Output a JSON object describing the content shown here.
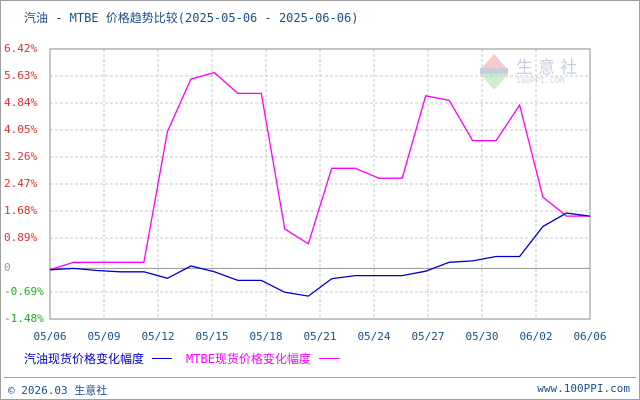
{
  "title": "汽油 - MTBE 价格趋势比较(2025-05-06 - 2025-06-06)",
  "watermark": {
    "name": "生意社",
    "sub": "100PPI.COM"
  },
  "footer": {
    "copyright": "© 2026.03 生意社",
    "site": "www.100PPI.com"
  },
  "legend": [
    {
      "label": "汽油现货价格变化幅度",
      "color": "#0000cc"
    },
    {
      "label": "MTBE现货价格变化幅度",
      "color": "#ff00ff"
    }
  ],
  "colors": {
    "positive_tick": "#e03030",
    "negative_tick": "#22aa22",
    "zero_tick": "#999999",
    "grid": "#c8c8c8",
    "axis": "#a0a0a0"
  },
  "chart_data": {
    "type": "line",
    "title": "汽油 - MTBE 价格趋势比较(2025-05-06 - 2025-06-06)",
    "xlabel": "",
    "ylabel": "",
    "ylim": [
      -1.48,
      6.42
    ],
    "yticks": [
      "6.42%",
      "5.63%",
      "4.84%",
      "4.05%",
      "3.26%",
      "2.47%",
      "1.68%",
      "0.89%",
      "0",
      "-0.69%",
      "-1.48%"
    ],
    "xticks": [
      "05/06",
      "05/09",
      "05/12",
      "05/15",
      "05/18",
      "05/21",
      "05/24",
      "05/27",
      "05/30",
      "06/02",
      "06/06"
    ],
    "grid": true,
    "legend_position": "bottom",
    "x": [
      "05/06",
      "05/07",
      "05/08",
      "05/09",
      "05/12",
      "05/13",
      "05/14",
      "05/15",
      "05/16",
      "05/19",
      "05/20",
      "05/21",
      "05/22",
      "05/23",
      "05/26",
      "05/27",
      "05/28",
      "05/29",
      "05/30",
      "06/02",
      "06/03",
      "06/04",
      "06/05",
      "06/06"
    ],
    "series": [
      {
        "name": "汽油现货价格变化幅度",
        "color": "#0000cc",
        "values": [
          -0.04,
          0.0,
          -0.06,
          -0.1,
          -0.1,
          -0.29,
          0.07,
          -0.1,
          -0.35,
          -0.35,
          -0.7,
          -0.81,
          -0.3,
          -0.21,
          -0.21,
          -0.21,
          -0.08,
          0.18,
          0.22,
          0.35,
          0.35,
          1.23,
          1.62,
          1.53
        ]
      },
      {
        "name": "MTBE现货价格变化幅度",
        "color": "#ff00ff",
        "values": [
          -0.04,
          0.18,
          0.18,
          0.18,
          0.18,
          4.0,
          5.54,
          5.73,
          5.12,
          5.12,
          1.15,
          0.72,
          2.93,
          2.93,
          2.64,
          2.64,
          5.05,
          4.92,
          3.74,
          3.74,
          4.78,
          2.08,
          1.53,
          1.53
        ]
      }
    ]
  }
}
